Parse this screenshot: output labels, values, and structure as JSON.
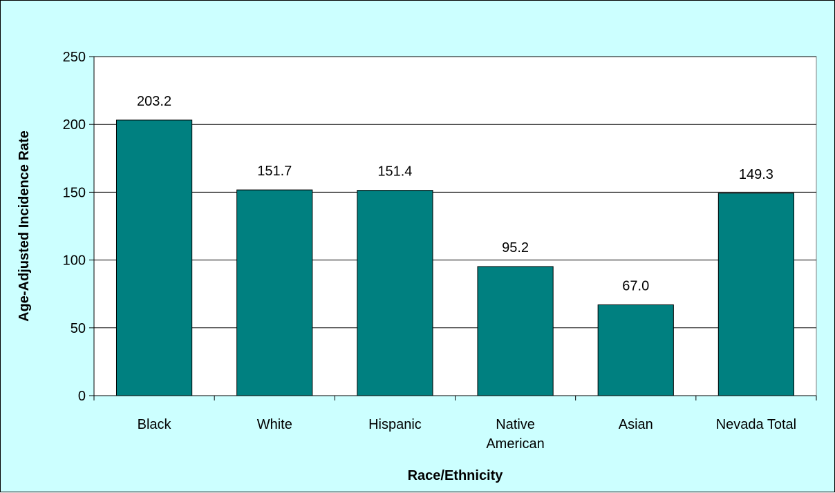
{
  "chart_data": {
    "type": "bar",
    "categories": [
      [
        "Black"
      ],
      [
        "White"
      ],
      [
        "Hispanic"
      ],
      [
        "Native",
        "American"
      ],
      [
        "Asian"
      ],
      [
        "Nevada Total"
      ]
    ],
    "values": [
      203.2,
      151.7,
      151.4,
      95.2,
      67.0,
      149.3
    ],
    "data_labels": [
      "203.2",
      "151.7",
      "151.4",
      "95.2",
      "67.0",
      "149.3"
    ],
    "xlabel": "Race/Ethnicity",
    "ylabel": "Age-Adjusted Incidence Rate",
    "ylim": [
      0,
      250
    ],
    "yticks": [
      0,
      50,
      100,
      150,
      200,
      250
    ],
    "grid": true,
    "legend": false
  },
  "colors": {
    "background": "#ccffff",
    "plot_area": "#ffffff",
    "bar_fill": "#008080",
    "bar_stroke": "#000000",
    "gridline": "#000000"
  }
}
